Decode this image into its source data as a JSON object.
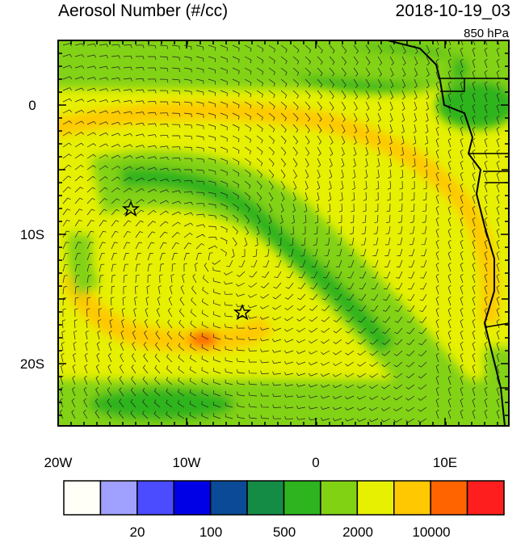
{
  "header": {
    "title": "Aerosol Number (#/cc)",
    "time": "2018-10-19_03",
    "level": "850 hPa"
  },
  "axes": {
    "lat_labels": [
      "0",
      "10S",
      "20S"
    ],
    "lon_labels": [
      "20W",
      "10W",
      "0",
      "10E"
    ]
  },
  "colorbar": {
    "labels": [
      "20",
      "100",
      "500",
      "2000",
      "10000"
    ]
  },
  "markers": [
    "star",
    "star"
  ]
}
